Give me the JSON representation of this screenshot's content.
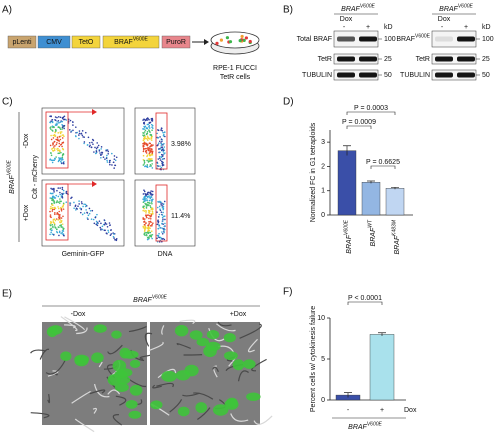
{
  "figure": {
    "A": {
      "label": "A)",
      "construct": [
        "pLenti",
        "CMV",
        "TetO",
        "BRAF",
        "PuroR"
      ],
      "construct_sup": "V600E",
      "cells": [
        "RPE-1 FUCCI",
        "TetR cells"
      ]
    },
    "B": {
      "label": "B)",
      "blots": [
        {
          "header": "BRAF",
          "header_sup": "V600E",
          "dox": "Dox",
          "minus": "-",
          "plus": "+",
          "kd": "kD",
          "rows": [
            {
              "name": "Total BRAF",
              "marker": "100"
            },
            {
              "name": "TetR",
              "marker": "25"
            },
            {
              "name": "TUBULIN",
              "marker": "50"
            }
          ]
        },
        {
          "header": "BRAF",
          "header_sup": "V600E",
          "dox": "Dox",
          "minus": "-",
          "plus": "+",
          "kd": "kD",
          "rows": [
            {
              "name": "BRAF",
              "sup": "V600E",
              "marker": "100"
            },
            {
              "name": "TetR",
              "marker": "25"
            },
            {
              "name": "TUBULIN",
              "marker": "50"
            }
          ]
        }
      ]
    },
    "C": {
      "label": "C)",
      "gene": "BRAF",
      "gene_sup": "V600E",
      "conditions": [
        "-Dox",
        "+Dox"
      ],
      "y_label": "Cdt - mCherry",
      "x_labels": [
        "Geminin-GFP",
        "DNA"
      ],
      "percents": [
        "3.98%",
        "11.4%"
      ]
    },
    "E": {
      "label": "E)",
      "gene": "BRAF",
      "gene_sup": "V600E",
      "conditions": [
        "-Dox",
        "+Dox"
      ]
    }
  },
  "chart_data": [
    {
      "type": "bar",
      "panel": "D)",
      "y_label": "Normalized FC in G1 tetraploids",
      "categories": [
        "BRAF",
        "BRAF",
        "BRAF"
      ],
      "category_superscripts": [
        "V600E",
        "WT",
        "K483M"
      ],
      "values": [
        2.65,
        1.35,
        1.1
      ],
      "errors": [
        0.2,
        0.05,
        0.04
      ],
      "colors": [
        "#3a4fa8",
        "#93b6e3",
        "#c0d6f2"
      ],
      "ylim": [
        0,
        3.5
      ],
      "yticks": [
        0,
        1,
        2,
        3
      ],
      "annotations": [
        "P = 0.0003",
        "P = 0.0009",
        "P = 0.6625"
      ]
    },
    {
      "type": "bar",
      "panel": "F)",
      "y_label": "Percent cells w/ cytokinesis failure",
      "categories": [
        "-",
        "+"
      ],
      "x_label": "Dox",
      "group_label": "BRAF",
      "group_label_sup": "V600E",
      "values": [
        0.6,
        8.0
      ],
      "errors": [
        0.3,
        0.2
      ],
      "colors": [
        "#3a4fa8",
        "#a9e1ec"
      ],
      "ylim": [
        0,
        10
      ],
      "yticks": [
        0,
        5,
        10
      ],
      "annotations": [
        "P < 0.0001"
      ]
    }
  ]
}
